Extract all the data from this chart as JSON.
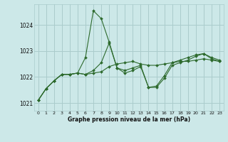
{
  "background_color": "#cce8e8",
  "grid_color": "#aacccc",
  "line_color": "#2d6a2d",
  "marker_color": "#2d6a2d",
  "xlabel": "Graphe pression niveau de la mer (hPa)",
  "xlim": [
    -0.5,
    23.5
  ],
  "ylim": [
    1020.7,
    1024.8
  ],
  "yticks": [
    1021,
    1022,
    1023,
    1024
  ],
  "xticks": [
    0,
    1,
    2,
    3,
    4,
    5,
    6,
    7,
    8,
    9,
    10,
    11,
    12,
    13,
    14,
    15,
    16,
    17,
    18,
    19,
    20,
    21,
    22,
    23
  ],
  "series": [
    [
      1021.1,
      1021.55,
      1021.85,
      1022.1,
      1022.1,
      1022.15,
      1022.75,
      1024.55,
      1024.25,
      1023.35,
      1022.35,
      1022.25,
      1022.35,
      1022.45,
      1021.6,
      1021.65,
      1022.05,
      1022.55,
      1022.65,
      1022.75,
      1022.85,
      1022.9,
      1022.75,
      1022.65
    ],
    [
      1021.1,
      1021.55,
      1021.85,
      1022.1,
      1022.1,
      1022.15,
      1022.1,
      1022.15,
      1022.2,
      1022.4,
      1022.5,
      1022.55,
      1022.6,
      1022.5,
      1022.45,
      1022.45,
      1022.5,
      1022.55,
      1022.6,
      1022.6,
      1022.65,
      1022.7,
      1022.65,
      1022.6
    ],
    [
      1021.1,
      1021.55,
      1021.85,
      1022.1,
      1022.1,
      1022.15,
      1022.1,
      1022.25,
      1022.55,
      1023.3,
      1022.35,
      1022.15,
      1022.25,
      1022.4,
      1021.6,
      1021.6,
      1021.95,
      1022.45,
      1022.55,
      1022.65,
      1022.8,
      1022.9,
      1022.7,
      1022.6
    ]
  ]
}
